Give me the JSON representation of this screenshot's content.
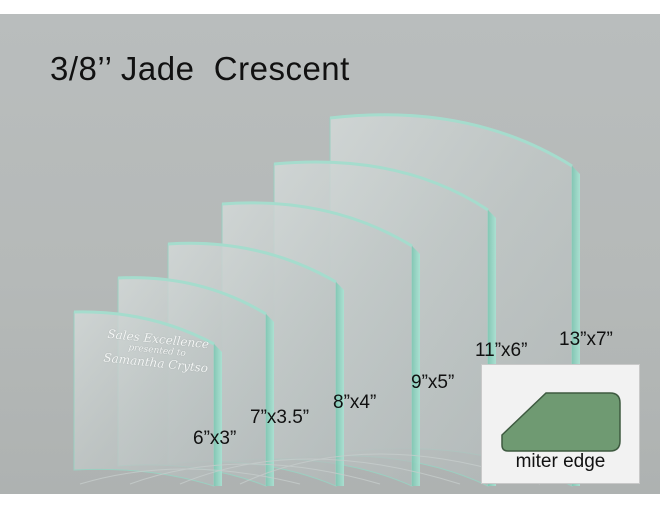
{
  "title": "3/8’’ Jade  Crescent",
  "engraving": {
    "line1": "Sales Excellence",
    "line2": "presented to",
    "line3": "Samantha Crytso"
  },
  "sizes": [
    {
      "label": "6”x3”"
    },
    {
      "label": "7”x3.5”"
    },
    {
      "label": "8”x4”"
    },
    {
      "label": "9”x5”"
    },
    {
      "label": "11”x6”"
    },
    {
      "label": "13”x7”"
    }
  ],
  "inset": {
    "label": "miter edge",
    "shape_color": "#6f9a72"
  },
  "colors": {
    "background": "#b7bbba",
    "glass_edge": "#8fd1bf",
    "glass_face": "#c9d0cf"
  }
}
